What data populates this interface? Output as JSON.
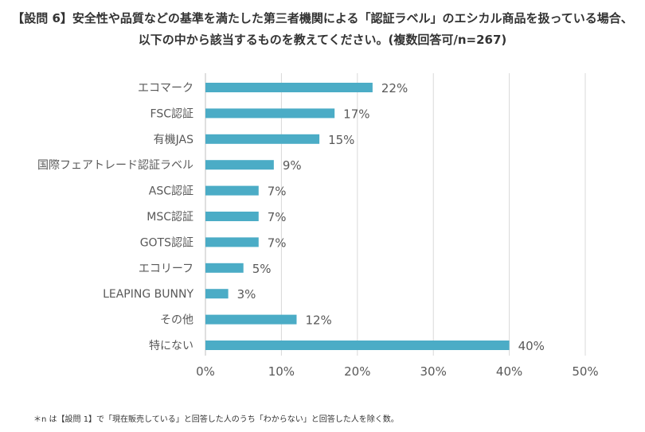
{
  "title": {
    "line1": "【設問 6】安全性や品質などの基準を満たした第三者機関による「認証ラベル」のエシカル商品を扱っている場合、",
    "line2": "以下の中から該当するものを教えてください。(複数回答可/n=267)"
  },
  "footnote": "＊n は【設問 1】で「現在販売している」と回答した人のうち「わからない」と回答した人を除く数。",
  "colors": {
    "bar": "#4BACC6",
    "grid": "#D9D9D9",
    "text": "#595959"
  },
  "chart_data": {
    "type": "bar",
    "orientation": "horizontal",
    "categories": [
      "エコマーク",
      "FSC認証",
      "有機JAS",
      "国際フェアトレード認証ラベル",
      "ASC認証",
      "MSC認証",
      "GOTS認証",
      "エコリーフ",
      "LEAPING BUNNY",
      "その他",
      "特にない"
    ],
    "values": [
      22,
      17,
      15,
      9,
      7,
      7,
      7,
      5,
      3,
      12,
      40
    ],
    "value_labels": [
      "22%",
      "17%",
      "15%",
      "9%",
      "7%",
      "7%",
      "7%",
      "5%",
      "3%",
      "12%",
      "40%"
    ],
    "xlim": [
      0,
      50
    ],
    "xticks": [
      0,
      10,
      20,
      30,
      40,
      50
    ],
    "xtick_labels": [
      "0%",
      "10%",
      "20%",
      "30%",
      "40%",
      "50%"
    ],
    "grid": true,
    "legend": "none"
  }
}
